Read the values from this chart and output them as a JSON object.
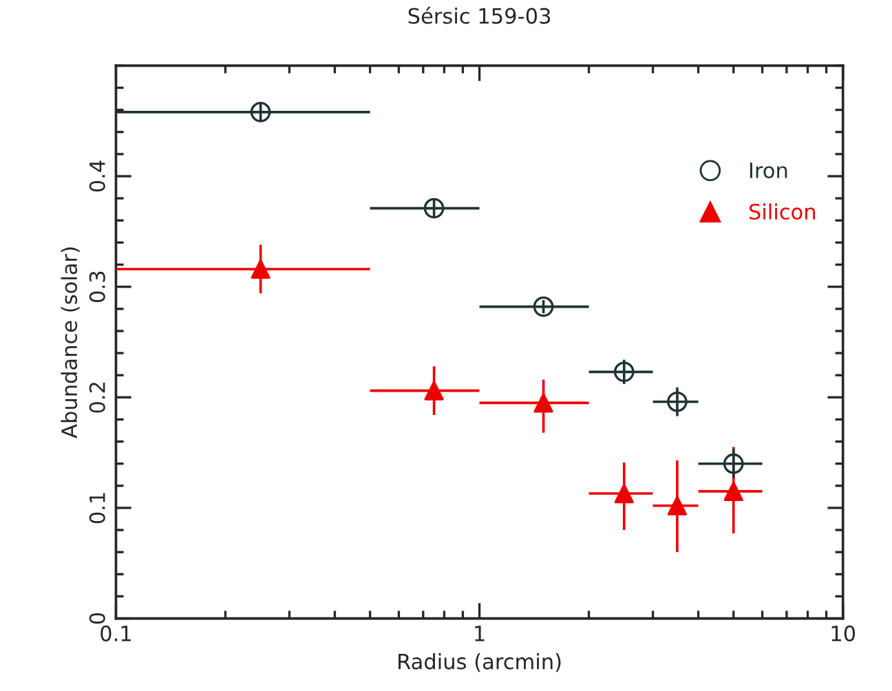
{
  "chart_data": {
    "type": "scatter",
    "title": "Sérsic 159-03",
    "xlabel": "Radius (arcmin)",
    "ylabel": "Abundance (solar)",
    "log": "x",
    "xlim": [
      0.1,
      10
    ],
    "xticks": [
      0.1,
      1,
      10
    ],
    "ylim": [
      0,
      0.5
    ],
    "yticks": [
      0,
      0.1,
      0.2,
      0.3,
      0.4
    ],
    "legend": "top right",
    "grid": false,
    "series": [
      {
        "name": "Iron",
        "color": "#1f3333",
        "marker": "circle",
        "x": [
          0.25,
          0.75,
          1.5,
          2.5,
          3.5,
          5
        ],
        "values": [
          0.458,
          0.371,
          0.282,
          0.223,
          0.196,
          0.14
        ],
        "errors": [
          [
            0.45,
            0.466
          ],
          [
            0.363,
            0.379
          ],
          [
            0.276,
            0.288
          ],
          [
            0.212,
            0.234
          ],
          [
            0.183,
            0.209
          ],
          [
            0.127,
            0.153
          ]
        ],
        "xerrors": [
          [
            0.1,
            0.5
          ],
          [
            0.5,
            1
          ],
          [
            1,
            2
          ],
          [
            2,
            3
          ],
          [
            3,
            4
          ],
          [
            4,
            6
          ]
        ]
      },
      {
        "name": "Silicon",
        "color": "#ee0000",
        "marker": "triangle",
        "x": [
          0.25,
          0.75,
          1.5,
          2.5,
          3.5,
          5
        ],
        "values": [
          0.316,
          0.206,
          0.195,
          0.113,
          0.102,
          0.115
        ],
        "errors": [
          [
            0.294,
            0.338
          ],
          [
            0.184,
            0.228
          ],
          [
            0.168,
            0.216
          ],
          [
            0.08,
            0.141
          ],
          [
            0.06,
            0.143
          ],
          [
            0.077,
            0.155
          ]
        ],
        "xerrors": [
          [
            0.1,
            0.5
          ],
          [
            0.5,
            1
          ],
          [
            1,
            2
          ],
          [
            2,
            3
          ],
          [
            3,
            4
          ],
          [
            4,
            6
          ]
        ]
      }
    ]
  }
}
